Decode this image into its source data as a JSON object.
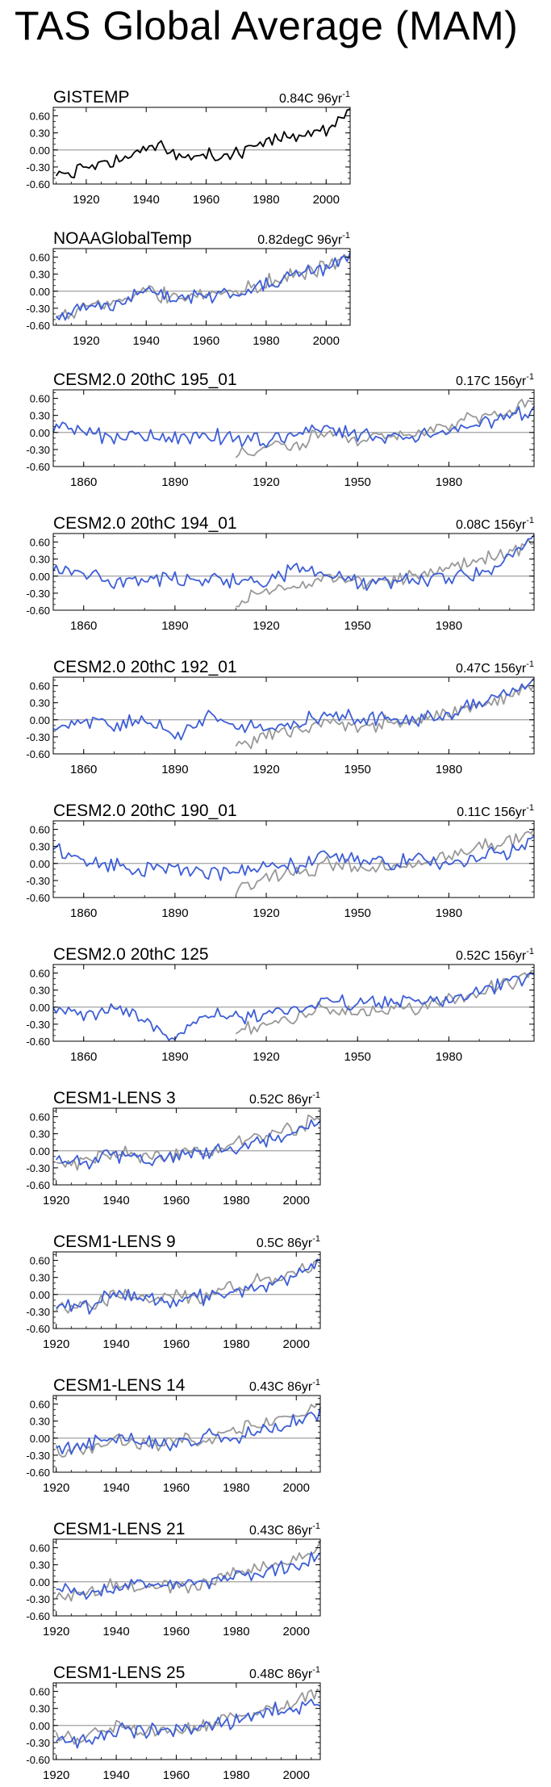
{
  "page_title": "TAS Global Average (MAM)",
  "colors": {
    "observed": "#000000",
    "model": "#3d5ed7",
    "obs_overlay": "#999999",
    "zero_line": "#a0a0a0"
  },
  "chart_data": [
    {
      "type": "line",
      "title": "GISTEMP",
      "trend": "0.84C 96yr",
      "trend_sup": "-1",
      "xlim": [
        1909,
        2008
      ],
      "ylim": [
        -0.6,
        0.75
      ],
      "yticks": [
        -0.6,
        -0.3,
        0.0,
        0.3,
        0.6
      ],
      "yticklabels": [
        "-0.60",
        "-0.30",
        "0.00",
        "0.30",
        "0.60"
      ],
      "xticks": [
        1920,
        1940,
        1960,
        1980,
        2000
      ],
      "series": [
        {
          "role": "observed",
          "x": [
            1910,
            1920,
            1930,
            1940,
            1944,
            1950,
            1960,
            1970,
            1980,
            1990,
            2000,
            2008
          ],
          "y": [
            -0.52,
            -0.28,
            -0.22,
            -0.02,
            0.12,
            -0.14,
            -0.08,
            -0.06,
            0.14,
            0.25,
            0.38,
            0.62
          ]
        }
      ]
    },
    {
      "type": "line",
      "title": "NOAAGlobalTemp",
      "trend": "0.82degC 96yr",
      "trend_sup": "-1",
      "xlim": [
        1909,
        2008
      ],
      "ylim": [
        -0.6,
        0.75
      ],
      "yticks": [
        -0.6,
        -0.3,
        0.0,
        0.3,
        0.6
      ],
      "yticklabels": [
        "-0.60",
        "-0.30",
        "0.00",
        "0.30",
        "0.60"
      ],
      "xticks": [
        1920,
        1940,
        1960,
        1980,
        2000
      ],
      "series": [
        {
          "role": "obs_overlay",
          "x": [
            1910,
            1920,
            1930,
            1940,
            1950,
            1960,
            1970,
            1980,
            1990,
            2000,
            2008
          ],
          "y": [
            -0.45,
            -0.26,
            -0.2,
            0.0,
            -0.12,
            -0.06,
            -0.04,
            0.15,
            0.28,
            0.4,
            0.62
          ]
        },
        {
          "role": "model",
          "x": [
            1910,
            1920,
            1930,
            1940,
            1950,
            1960,
            1970,
            1980,
            1990,
            2000,
            2008
          ],
          "y": [
            -0.48,
            -0.25,
            -0.22,
            0.02,
            -0.1,
            -0.08,
            -0.05,
            0.12,
            0.3,
            0.42,
            0.6
          ]
        }
      ]
    },
    {
      "type": "line",
      "title": "CESM2.0 20thC 195_01",
      "trend": "0.17C 156yr",
      "trend_sup": "-1",
      "xlim": [
        1850,
        2008
      ],
      "ylim": [
        -0.6,
        0.75
      ],
      "yticks": [
        -0.6,
        -0.3,
        0.0,
        0.3,
        0.6
      ],
      "yticklabels": [
        "-0.60",
        "-0.30",
        "0.00",
        "0.30",
        "0.60"
      ],
      "xticks": [
        1860,
        1890,
        1920,
        1950,
        1980
      ],
      "series": [
        {
          "role": "obs_overlay",
          "x": [
            1910,
            1920,
            1930,
            1940,
            1950,
            1960,
            1970,
            1980,
            1990,
            2000,
            2008
          ],
          "y": [
            -0.45,
            -0.26,
            -0.2,
            0.0,
            -0.12,
            -0.06,
            -0.04,
            0.15,
            0.28,
            0.4,
            0.62
          ]
        },
        {
          "role": "model",
          "x": [
            1850,
            1860,
            1870,
            1880,
            1890,
            1900,
            1910,
            1920,
            1930,
            1940,
            1950,
            1960,
            1970,
            1980,
            1990,
            2000,
            2008
          ],
          "y": [
            0.1,
            0.02,
            -0.1,
            -0.02,
            -0.1,
            -0.05,
            -0.08,
            -0.15,
            -0.05,
            0.1,
            -0.02,
            -0.1,
            -0.08,
            0.0,
            0.15,
            0.3,
            0.35
          ]
        }
      ]
    },
    {
      "type": "line",
      "title": "CESM2.0 20thC 194_01",
      "trend": "0.08C 156yr",
      "trend_sup": "-1",
      "xlim": [
        1850,
        2008
      ],
      "ylim": [
        -0.6,
        0.75
      ],
      "yticks": [
        -0.6,
        -0.3,
        0.0,
        0.3,
        0.6
      ],
      "yticklabels": [
        "-0.60",
        "-0.30",
        "0.00",
        "0.30",
        "0.60"
      ],
      "xticks": [
        1860,
        1890,
        1920,
        1950,
        1980
      ],
      "series": [
        {
          "role": "obs_overlay",
          "x": [
            1910,
            1920,
            1930,
            1940,
            1950,
            1960,
            1970,
            1980,
            1990,
            2000,
            2008
          ],
          "y": [
            -0.45,
            -0.26,
            -0.2,
            0.0,
            -0.12,
            -0.06,
            -0.04,
            0.15,
            0.28,
            0.4,
            0.62
          ]
        },
        {
          "role": "model",
          "x": [
            1850,
            1860,
            1870,
            1880,
            1890,
            1900,
            1910,
            1920,
            1930,
            1940,
            1950,
            1960,
            1970,
            1980,
            1990,
            2000,
            2008
          ],
          "y": [
            0.2,
            0.05,
            -0.1,
            0.0,
            -0.08,
            -0.02,
            -0.1,
            -0.12,
            0.15,
            0.05,
            -0.12,
            -0.1,
            -0.05,
            0.0,
            0.05,
            0.3,
            0.75
          ]
        }
      ]
    },
    {
      "type": "line",
      "title": "CESM2.0 20thC 192_01",
      "trend": "0.47C 156yr",
      "trend_sup": "-1",
      "xlim": [
        1850,
        2008
      ],
      "ylim": [
        -0.6,
        0.75
      ],
      "yticks": [
        -0.6,
        -0.3,
        0.0,
        0.3,
        0.6
      ],
      "yticklabels": [
        "-0.60",
        "-0.30",
        "0.00",
        "0.30",
        "0.60"
      ],
      "xticks": [
        1860,
        1890,
        1920,
        1950,
        1980
      ],
      "series": [
        {
          "role": "obs_overlay",
          "x": [
            1910,
            1920,
            1930,
            1940,
            1950,
            1960,
            1970,
            1980,
            1990,
            2000,
            2008
          ],
          "y": [
            -0.45,
            -0.26,
            -0.2,
            0.0,
            -0.12,
            -0.06,
            -0.04,
            0.15,
            0.28,
            0.4,
            0.62
          ]
        },
        {
          "role": "model",
          "x": [
            1850,
            1860,
            1870,
            1880,
            1890,
            1900,
            1910,
            1920,
            1930,
            1940,
            1950,
            1960,
            1970,
            1980,
            1990,
            2000,
            2008
          ],
          "y": [
            -0.15,
            -0.05,
            -0.12,
            0.05,
            -0.35,
            0.05,
            -0.1,
            -0.15,
            -0.02,
            0.05,
            0.05,
            0.05,
            0.0,
            0.08,
            0.3,
            0.45,
            0.62
          ]
        }
      ]
    },
    {
      "type": "line",
      "title": "CESM2.0 20thC 190_01",
      "trend": "0.11C 156yr",
      "trend_sup": "-1",
      "xlim": [
        1850,
        2008
      ],
      "ylim": [
        -0.6,
        0.75
      ],
      "yticks": [
        -0.6,
        -0.3,
        0.0,
        0.3,
        0.6
      ],
      "yticklabels": [
        "-0.60",
        "-0.30",
        "0.00",
        "0.30",
        "0.60"
      ],
      "xticks": [
        1860,
        1890,
        1920,
        1950,
        1980
      ],
      "series": [
        {
          "role": "obs_overlay",
          "x": [
            1910,
            1920,
            1930,
            1940,
            1950,
            1960,
            1970,
            1980,
            1990,
            2000,
            2008
          ],
          "y": [
            -0.45,
            -0.26,
            -0.2,
            0.0,
            -0.12,
            -0.06,
            -0.04,
            0.15,
            0.28,
            0.4,
            0.62
          ]
        },
        {
          "role": "model",
          "x": [
            1850,
            1860,
            1870,
            1880,
            1890,
            1900,
            1910,
            1920,
            1930,
            1940,
            1950,
            1960,
            1970,
            1980,
            1990,
            2000,
            2008
          ],
          "y": [
            0.28,
            0.05,
            -0.05,
            -0.1,
            -0.12,
            -0.15,
            -0.15,
            -0.05,
            -0.02,
            0.15,
            0.05,
            0.0,
            0.1,
            -0.02,
            0.1,
            0.2,
            0.42
          ]
        }
      ]
    },
    {
      "type": "line",
      "title": "CESM2.0 20thC 125",
      "trend": "0.52C 156yr",
      "trend_sup": "-1",
      "xlim": [
        1850,
        2008
      ],
      "ylim": [
        -0.6,
        0.75
      ],
      "yticks": [
        -0.6,
        -0.3,
        0.0,
        0.3,
        0.6
      ],
      "yticklabels": [
        "-0.60",
        "-0.30",
        "0.00",
        "0.30",
        "0.60"
      ],
      "xticks": [
        1860,
        1890,
        1920,
        1950,
        1980
      ],
      "series": [
        {
          "role": "obs_overlay",
          "x": [
            1910,
            1920,
            1930,
            1940,
            1950,
            1960,
            1970,
            1980,
            1990,
            2000,
            2008
          ],
          "y": [
            -0.45,
            -0.26,
            -0.2,
            0.0,
            -0.12,
            -0.06,
            -0.04,
            0.15,
            0.28,
            0.4,
            0.62
          ]
        },
        {
          "role": "model",
          "x": [
            1850,
            1860,
            1870,
            1880,
            1888,
            1900,
            1910,
            1920,
            1930,
            1940,
            1950,
            1960,
            1970,
            1980,
            1990,
            2000,
            2008
          ],
          "y": [
            -0.05,
            -0.1,
            -0.05,
            -0.2,
            -0.55,
            -0.15,
            -0.2,
            -0.1,
            -0.05,
            0.1,
            0.05,
            0.1,
            0.05,
            0.12,
            0.3,
            0.45,
            0.55
          ]
        }
      ]
    },
    {
      "type": "line",
      "title": "CESM1-LENS 3",
      "trend": "0.52C 86yr",
      "trend_sup": "-1",
      "xlim": [
        1919,
        2008
      ],
      "ylim": [
        -0.6,
        0.75
      ],
      "yticks": [
        -0.6,
        -0.3,
        0.0,
        0.3,
        0.6
      ],
      "yticklabels": [
        "-0.60",
        "-0.30",
        "0.00",
        "0.30",
        "0.60"
      ],
      "xticks": [
        1920,
        1940,
        1960,
        1980,
        2000
      ],
      "series": [
        {
          "role": "obs_overlay",
          "x": [
            1920,
            1930,
            1940,
            1950,
            1960,
            1970,
            1980,
            1990,
            2000,
            2008
          ],
          "y": [
            -0.26,
            -0.2,
            0.0,
            -0.12,
            -0.06,
            -0.04,
            0.15,
            0.28,
            0.4,
            0.62
          ]
        },
        {
          "role": "model",
          "x": [
            1920,
            1930,
            1940,
            1950,
            1960,
            1970,
            1980,
            1990,
            2000,
            2008
          ],
          "y": [
            -0.18,
            -0.2,
            -0.05,
            -0.15,
            -0.12,
            0.0,
            0.05,
            0.2,
            0.3,
            0.55
          ]
        }
      ]
    },
    {
      "type": "line",
      "title": "CESM1-LENS 9",
      "trend": "0.5C 86yr",
      "trend_sup": "-1",
      "xlim": [
        1919,
        2008
      ],
      "ylim": [
        -0.6,
        0.75
      ],
      "yticks": [
        -0.6,
        -0.3,
        0.0,
        0.3,
        0.6
      ],
      "yticklabels": [
        "-0.60",
        "-0.30",
        "0.00",
        "0.30",
        "0.60"
      ],
      "xticks": [
        1920,
        1940,
        1960,
        1980,
        2000
      ],
      "series": [
        {
          "role": "obs_overlay",
          "x": [
            1920,
            1930,
            1940,
            1950,
            1960,
            1970,
            1980,
            1990,
            2000,
            2008
          ],
          "y": [
            -0.26,
            -0.2,
            0.0,
            -0.12,
            -0.06,
            -0.04,
            0.15,
            0.28,
            0.4,
            0.62
          ]
        },
        {
          "role": "model",
          "x": [
            1920,
            1930,
            1940,
            1950,
            1960,
            1970,
            1980,
            1990,
            2000,
            2008
          ],
          "y": [
            -0.15,
            -0.22,
            0.05,
            -0.1,
            -0.1,
            -0.05,
            0.05,
            0.15,
            0.35,
            0.6
          ]
        }
      ]
    },
    {
      "type": "line",
      "title": "CESM1-LENS 14",
      "trend": "0.43C 86yr",
      "trend_sup": "-1",
      "xlim": [
        1919,
        2008
      ],
      "ylim": [
        -0.6,
        0.75
      ],
      "yticks": [
        -0.6,
        -0.3,
        0.0,
        0.3,
        0.6
      ],
      "yticklabels": [
        "-0.60",
        "-0.30",
        "0.00",
        "0.30",
        "0.60"
      ],
      "xticks": [
        1920,
        1940,
        1960,
        1980,
        2000
      ],
      "series": [
        {
          "role": "obs_overlay",
          "x": [
            1920,
            1930,
            1940,
            1950,
            1960,
            1970,
            1980,
            1990,
            2000,
            2008
          ],
          "y": [
            -0.26,
            -0.2,
            0.0,
            -0.12,
            -0.06,
            -0.04,
            0.15,
            0.28,
            0.4,
            0.62
          ]
        },
        {
          "role": "model",
          "x": [
            1920,
            1930,
            1940,
            1950,
            1960,
            1970,
            1980,
            1990,
            2000,
            2008
          ],
          "y": [
            -0.2,
            -0.15,
            0.05,
            -0.12,
            -0.1,
            0.05,
            0.0,
            0.15,
            0.3,
            0.45
          ]
        }
      ]
    },
    {
      "type": "line",
      "title": "CESM1-LENS 21",
      "trend": "0.43C 86yr",
      "trend_sup": "-1",
      "xlim": [
        1919,
        2008
      ],
      "ylim": [
        -0.6,
        0.75
      ],
      "yticks": [
        -0.6,
        -0.3,
        0.0,
        0.3,
        0.6
      ],
      "yticklabels": [
        "-0.60",
        "-0.30",
        "0.00",
        "0.30",
        "0.60"
      ],
      "xticks": [
        1920,
        1940,
        1960,
        1980,
        2000
      ],
      "series": [
        {
          "role": "obs_overlay",
          "x": [
            1920,
            1930,
            1940,
            1950,
            1960,
            1970,
            1980,
            1990,
            2000,
            2008
          ],
          "y": [
            -0.26,
            -0.2,
            0.0,
            -0.12,
            -0.06,
            -0.04,
            0.15,
            0.28,
            0.4,
            0.62
          ]
        },
        {
          "role": "model",
          "x": [
            1920,
            1930,
            1940,
            1950,
            1960,
            1970,
            1980,
            1990,
            2000,
            2008
          ],
          "y": [
            -0.12,
            -0.25,
            -0.05,
            -0.08,
            -0.05,
            0.0,
            0.1,
            0.2,
            0.3,
            0.42
          ]
        }
      ]
    },
    {
      "type": "line",
      "title": "CESM1-LENS 25",
      "trend": "0.48C 86yr",
      "trend_sup": "-1",
      "xlim": [
        1919,
        2008
      ],
      "ylim": [
        -0.6,
        0.75
      ],
      "yticks": [
        -0.6,
        -0.3,
        0.0,
        0.3,
        0.6
      ],
      "yticklabels": [
        "-0.60",
        "-0.30",
        "0.00",
        "0.30",
        "0.60"
      ],
      "xticks": [
        1920,
        1940,
        1960,
        1980,
        2000
      ],
      "series": [
        {
          "role": "obs_overlay",
          "x": [
            1920,
            1930,
            1940,
            1950,
            1960,
            1970,
            1980,
            1990,
            2000,
            2008
          ],
          "y": [
            -0.26,
            -0.2,
            0.0,
            -0.12,
            -0.06,
            -0.04,
            0.15,
            0.28,
            0.4,
            0.62
          ]
        },
        {
          "role": "model",
          "x": [
            1920,
            1930,
            1940,
            1950,
            1960,
            1970,
            1980,
            1990,
            2000,
            2008
          ],
          "y": [
            -0.25,
            -0.3,
            -0.05,
            -0.1,
            -0.08,
            -0.02,
            0.08,
            0.25,
            0.3,
            0.45
          ]
        }
      ]
    }
  ]
}
